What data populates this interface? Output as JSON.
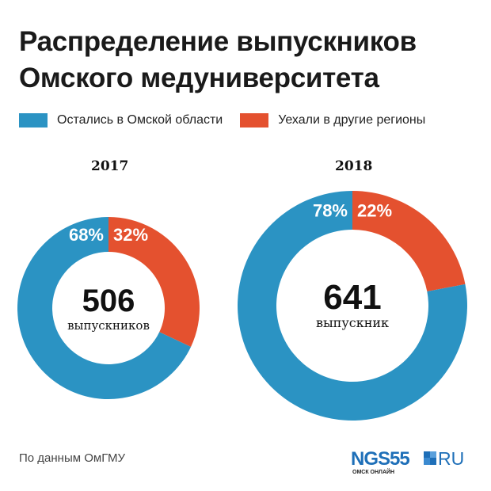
{
  "title_line1": "Распределение выпускников",
  "title_line2": "Омского медуниверситета",
  "colors": {
    "stayed": "#2b93c3",
    "left": "#e4512f"
  },
  "chart_data": [
    {
      "type": "pie",
      "title": "2017",
      "categories": [
        "Остались в Омской области",
        "Уехали в другие регионы"
      ],
      "values": [
        68,
        32
      ],
      "labels": [
        "68%",
        "32%"
      ],
      "total": "506",
      "total_label": "выпускников",
      "legend": "top-left"
    },
    {
      "type": "pie",
      "title": "2018",
      "categories": [
        "Остались в Омской области",
        "Уехали в другие регионы"
      ],
      "values": [
        78,
        22
      ],
      "labels": [
        "78%",
        "22%"
      ],
      "total": "641",
      "total_label": "выпускник",
      "legend": "top-left"
    }
  ],
  "legend": {
    "stayed": "Остались в Омской области",
    "left": "Уехали в другие регионы"
  },
  "source": "По данным ОмГМУ",
  "logo": {
    "text": "NGS55",
    "suffix": "RU",
    "tagline": "ОМСК ОНЛАЙН"
  }
}
